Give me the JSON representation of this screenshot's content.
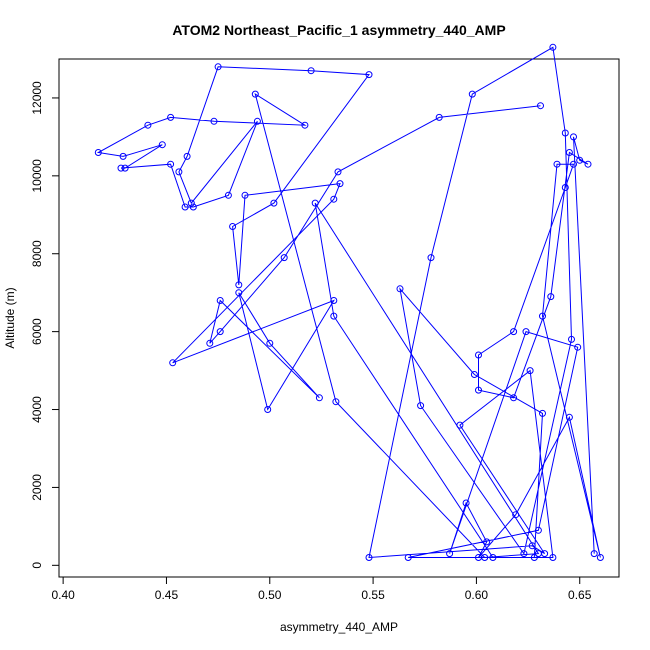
{
  "chart_data": {
    "type": "line",
    "title": "ATOM2 Northeast_Pacific_1 asymmetry_440_AMP",
    "xlabel": "asymmetry_440_AMP",
    "ylabel": "Altitude (m)",
    "xlim": [
      0.398,
      0.669
    ],
    "ylim": [
      -300,
      13000
    ],
    "xticks": [
      0.4,
      0.45,
      0.5,
      0.55,
      0.6,
      0.65
    ],
    "xtick_labels": [
      "0.40",
      "0.45",
      "0.50",
      "0.55",
      "0.60",
      "0.65"
    ],
    "yticks": [
      0,
      2000,
      4000,
      6000,
      8000,
      10000,
      12000
    ],
    "ytick_labels": [
      "0",
      "2000",
      "4000",
      "6000",
      "8000",
      "10000",
      "12000"
    ],
    "grid": false,
    "series": [
      {
        "color": "#0000ff",
        "x": [
          0.657,
          0.647,
          0.65,
          0.654,
          0.645,
          0.636,
          0.618,
          0.601,
          0.601,
          0.618,
          0.643,
          0.647,
          0.639,
          0.632,
          0.66,
          0.645,
          0.619,
          0.601,
          0.605,
          0.595,
          0.587,
          0.624,
          0.649,
          0.63,
          0.567,
          0.637,
          0.626,
          0.592,
          0.633,
          0.627,
          0.548,
          0.578,
          0.598,
          0.637,
          0.643,
          0.646,
          0.623,
          0.573,
          0.563,
          0.599,
          0.632,
          0.628,
          0.608,
          0.531,
          0.522,
          0.63,
          0.604,
          0.532,
          0.493,
          0.517,
          0.473,
          0.452,
          0.441,
          0.417,
          0.429,
          0.448,
          0.43,
          0.428,
          0.452,
          0.459,
          0.463,
          0.48,
          0.494,
          0.462,
          0.456,
          0.46,
          0.475,
          0.52,
          0.548,
          0.502,
          0.482,
          0.485,
          0.488,
          0.534,
          0.531,
          0.453,
          0.531,
          0.499,
          0.485,
          0.5,
          0.524,
          0.476,
          0.471,
          0.476,
          0.507,
          0.533,
          0.582,
          0.631
        ],
        "y": [
          300,
          11000,
          10400,
          10300,
          10600,
          6900,
          4300,
          4500,
          5400,
          6000,
          9700,
          10300,
          10300,
          6400,
          200,
          3800,
          1300,
          200,
          600,
          1600,
          300,
          6000,
          5600,
          900,
          200,
          200,
          5000,
          3600,
          300,
          500,
          200,
          7900,
          12100,
          13300,
          11100,
          5800,
          300,
          4100,
          7100,
          4900,
          3900,
          200,
          200,
          6400,
          9300,
          300,
          200,
          4200,
          12100,
          11300,
          11400,
          11500,
          11300,
          10600,
          10500,
          10800,
          10200,
          10200,
          10300,
          9200,
          9200,
          9500,
          11400,
          9300,
          10100,
          10500,
          12800,
          12700,
          12600,
          9300,
          8700,
          7200,
          9500,
          9800,
          9400,
          5200,
          6800,
          4000,
          7000,
          5700,
          4300,
          6800,
          5700,
          6000,
          7900,
          10100,
          11500,
          11800
        ]
      }
    ]
  }
}
